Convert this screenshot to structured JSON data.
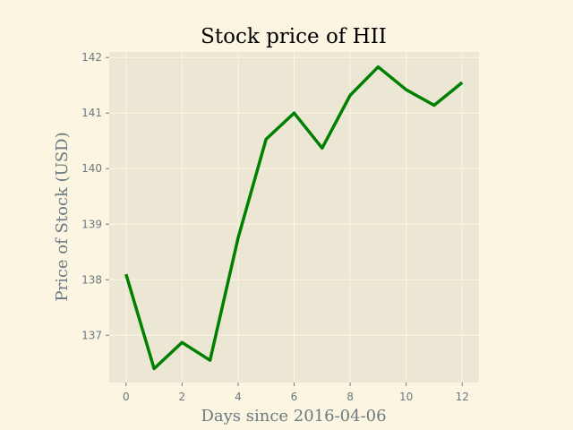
{
  "chart_data": {
    "type": "line",
    "title": "Stock price of HII",
    "xlabel": "Days since 2016-04-06",
    "ylabel": "Price of Stock (USD)",
    "x": [
      0,
      1,
      2,
      3,
      4,
      5,
      6,
      7,
      8,
      9,
      10,
      11,
      12
    ],
    "series": [
      {
        "values": [
          138.1,
          136.4,
          136.87,
          136.55,
          138.75,
          140.53,
          141.0,
          140.37,
          141.32,
          141.83,
          141.42,
          141.14,
          141.55
        ],
        "color": "#008000"
      }
    ],
    "xlim": [
      -0.6,
      12.6
    ],
    "ylim": [
      136.15,
      142.1
    ],
    "xticks": [
      0,
      2,
      4,
      6,
      8,
      10,
      12
    ],
    "yticks": [
      137,
      138,
      139,
      140,
      141,
      142
    ],
    "grid": true,
    "background": "#ece6d4",
    "figure_background": "#fcf5e2"
  }
}
